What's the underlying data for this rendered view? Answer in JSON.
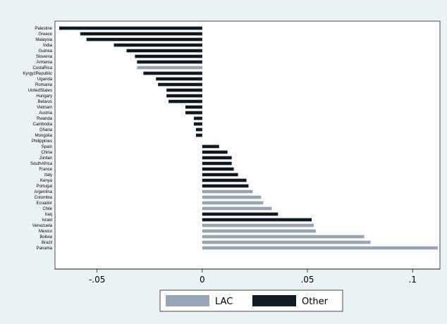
{
  "chart_data": {
    "type": "bar",
    "orientation": "horizontal",
    "grid": false,
    "legend_position": "bottom",
    "xlim": [
      -0.07,
      0.113
    ],
    "xticks": [
      {
        "value": -0.05,
        "label": "-.05"
      },
      {
        "value": 0,
        "label": "0"
      },
      {
        "value": 0.05,
        "label": ".05"
      },
      {
        "value": 0.1,
        "label": ".1"
      }
    ],
    "series": [
      {
        "name": "LAC",
        "color": "#99a5b5"
      },
      {
        "name": "Other",
        "color": "#0f1a22"
      }
    ],
    "categories": [
      "Palestine",
      "Greece",
      "Malaysia",
      "India",
      "Guinea",
      "Slovenia",
      "Armenia",
      "CostaRica",
      "KyrgyzRepublic",
      "Uganda",
      "Romania",
      "UnitedStates",
      "Hungary",
      "Belarus",
      "Vietnam",
      "Austria",
      "Rwanda",
      "Cambodia",
      "Ghana",
      "Mongolia",
      "Philippines",
      "Spain",
      "China",
      "Jordan",
      "SouthAfrica",
      "France",
      "Italy",
      "Kenya",
      "Portugal",
      "Argentina",
      "Colombia",
      "Ecuador",
      "Chile",
      "Iraq",
      "Israel",
      "Venezuela",
      "Mexico",
      "Bolivia",
      "Brazil",
      "Panama"
    ],
    "values": [
      -0.068,
      -0.058,
      -0.055,
      -0.042,
      -0.036,
      -0.032,
      -0.031,
      -0.031,
      -0.028,
      -0.022,
      -0.021,
      -0.017,
      -0.017,
      -0.016,
      -0.008,
      -0.008,
      -0.004,
      -0.004,
      -0.003,
      -0.003,
      0,
      0.008,
      0.012,
      0.014,
      0.014,
      0.015,
      0.017,
      0.021,
      0.022,
      0.024,
      0.028,
      0.029,
      0.033,
      0.036,
      0.052,
      0.053,
      0.054,
      0.077,
      0.08,
      0.112
    ],
    "groups": [
      "Other",
      "Other",
      "Other",
      "Other",
      "Other",
      "Other",
      "Other",
      "LAC",
      "Other",
      "Other",
      "Other",
      "Other",
      "Other",
      "Other",
      "Other",
      "Other",
      "Other",
      "Other",
      "Other",
      "Other",
      "Other",
      "Other",
      "Other",
      "Other",
      "Other",
      "Other",
      "Other",
      "Other",
      "Other",
      "LAC",
      "LAC",
      "LAC",
      "LAC",
      "Other",
      "Other",
      "LAC",
      "LAC",
      "LAC",
      "LAC",
      "LAC"
    ]
  }
}
